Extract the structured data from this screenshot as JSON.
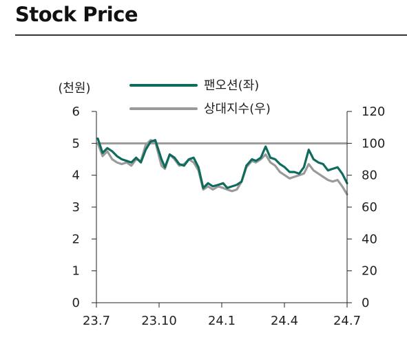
{
  "page": {
    "title": "Stock Price"
  },
  "chart_data": {
    "type": "line",
    "y_left_unit": "(천원)",
    "y_left_ticks": [
      0,
      1,
      2,
      3,
      4,
      5,
      6
    ],
    "y_right_ticks": [
      0,
      20,
      40,
      60,
      80,
      100,
      120
    ],
    "x_ticks": [
      "23.7",
      "23.10",
      "24.1",
      "24.4",
      "24.7"
    ],
    "ylim_left": [
      0,
      6
    ],
    "ylim_right": [
      0,
      120
    ],
    "reference_line": {
      "axis": "right",
      "value": 100,
      "color": "#9a9a9a"
    },
    "legend": {
      "placement": "top-center"
    },
    "series": [
      {
        "name": "팬오션(좌)",
        "axis": "left",
        "color": "#0f6b5c",
        "x": [
          "2023-07-03",
          "2023-07-10",
          "2023-07-17",
          "2023-07-24",
          "2023-07-31",
          "2023-08-07",
          "2023-08-14",
          "2023-08-21",
          "2023-08-28",
          "2023-09-04",
          "2023-09-11",
          "2023-09-18",
          "2023-09-25",
          "2023-10-04",
          "2023-10-09",
          "2023-10-16",
          "2023-10-23",
          "2023-10-30",
          "2023-11-06",
          "2023-11-13",
          "2023-11-20",
          "2023-11-27",
          "2023-12-04",
          "2023-12-11",
          "2023-12-18",
          "2023-12-26",
          "2024-01-02",
          "2024-01-08",
          "2024-01-15",
          "2024-01-22",
          "2024-01-29",
          "2024-02-05",
          "2024-02-13",
          "2024-02-19",
          "2024-02-26",
          "2024-03-04",
          "2024-03-11",
          "2024-03-18",
          "2024-03-25",
          "2024-04-01",
          "2024-04-08",
          "2024-04-15",
          "2024-04-22",
          "2024-04-29",
          "2024-05-06",
          "2024-05-13",
          "2024-05-20",
          "2024-05-27",
          "2024-06-03",
          "2024-06-10",
          "2024-06-17",
          "2024-06-24",
          "2024-07-01"
        ],
        "values": [
          5.15,
          4.7,
          4.85,
          4.75,
          4.6,
          4.5,
          4.45,
          4.4,
          4.55,
          4.4,
          4.8,
          5.05,
          5.1,
          4.5,
          4.25,
          4.65,
          4.55,
          4.35,
          4.3,
          4.5,
          4.55,
          4.25,
          3.6,
          3.75,
          3.65,
          3.7,
          3.75,
          3.6,
          3.65,
          3.7,
          3.8,
          4.3,
          4.5,
          4.45,
          4.55,
          4.9,
          4.55,
          4.5,
          4.35,
          4.25,
          4.1,
          4.1,
          4.05,
          4.25,
          4.8,
          4.5,
          4.4,
          4.35,
          4.15,
          4.2,
          4.25,
          4.05,
          3.75
        ]
      },
      {
        "name": "상대지수(우)",
        "axis": "right",
        "color": "#9a9a9a",
        "x": [
          "2023-07-03",
          "2023-07-10",
          "2023-07-17",
          "2023-07-24",
          "2023-07-31",
          "2023-08-07",
          "2023-08-14",
          "2023-08-21",
          "2023-08-28",
          "2023-09-04",
          "2023-09-11",
          "2023-09-18",
          "2023-09-25",
          "2023-10-04",
          "2023-10-09",
          "2023-10-16",
          "2023-10-23",
          "2023-10-30",
          "2023-11-06",
          "2023-11-13",
          "2023-11-20",
          "2023-11-27",
          "2023-12-04",
          "2023-12-11",
          "2023-12-18",
          "2023-12-26",
          "2024-01-02",
          "2024-01-08",
          "2024-01-15",
          "2024-01-22",
          "2024-01-29",
          "2024-02-05",
          "2024-02-13",
          "2024-02-19",
          "2024-02-26",
          "2024-03-04",
          "2024-03-11",
          "2024-03-18",
          "2024-03-25",
          "2024-04-01",
          "2024-04-08",
          "2024-04-15",
          "2024-04-22",
          "2024-04-29",
          "2024-05-06",
          "2024-05-13",
          "2024-05-20",
          "2024-05-27",
          "2024-06-03",
          "2024-06-10",
          "2024-06-17",
          "2024-06-24",
          "2024-07-01"
        ],
        "values": [
          100,
          92,
          95,
          90,
          88,
          87,
          88,
          86,
          90,
          89,
          99,
          102,
          101,
          86,
          84,
          93,
          90,
          86,
          87,
          90,
          88,
          83,
          71,
          73,
          71,
          73,
          72,
          71,
          70,
          71,
          76,
          85,
          89,
          88,
          90,
          93,
          88,
          86,
          82,
          80,
          78,
          79,
          80,
          81,
          87,
          83,
          81,
          79,
          77,
          76,
          77,
          73,
          68
        ]
      }
    ]
  }
}
